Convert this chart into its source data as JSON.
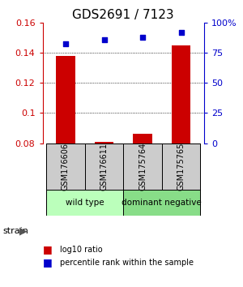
{
  "title": "GDS2691 / 7123",
  "samples": [
    "GSM176606",
    "GSM176611",
    "GSM175764",
    "GSM175765"
  ],
  "log10_ratio": [
    0.138,
    0.081,
    0.086,
    0.145
  ],
  "percentile_rank": [
    83,
    86,
    88,
    92
  ],
  "ylim_left": [
    0.08,
    0.16
  ],
  "ylim_right": [
    0,
    100
  ],
  "yticks_left": [
    0.08,
    0.1,
    0.12,
    0.14,
    0.16
  ],
  "yticks_right": [
    0,
    25,
    50,
    75,
    100
  ],
  "ytick_labels_right": [
    "0",
    "25",
    "50",
    "75",
    "100%"
  ],
  "groups": [
    {
      "label": "wild type",
      "samples": [
        0,
        1
      ],
      "color": "#bbffbb"
    },
    {
      "label": "dominant negative",
      "samples": [
        2,
        3
      ],
      "color": "#88dd88"
    }
  ],
  "bar_color": "#cc0000",
  "scatter_color": "#0000cc",
  "bar_bottom": 0.08,
  "left_axis_color": "#cc0000",
  "right_axis_color": "#0000cc",
  "sample_box_color": "#cccccc",
  "grid_dotted_ticks": [
    0.1,
    0.12,
    0.14
  ],
  "legend_items": [
    {
      "color": "#cc0000",
      "label": "log10 ratio"
    },
    {
      "color": "#0000cc",
      "label": "percentile rank within the sample"
    }
  ],
  "strain_label": "strain"
}
